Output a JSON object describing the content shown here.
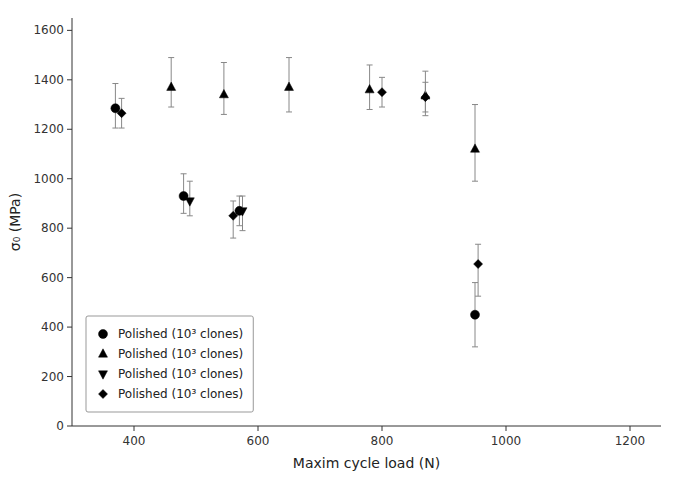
{
  "chart_data": {
    "type": "scatter",
    "xlabel": "Maxim cycle load (N)",
    "ylabel": "σ₀ (MPa)",
    "xlim": [
      300,
      1250
    ],
    "ylim": [
      0,
      1650
    ],
    "xticks": [
      400,
      600,
      800,
      1000,
      1200
    ],
    "yticks": [
      0,
      200,
      400,
      600,
      800,
      1000,
      1200,
      1400,
      1600
    ],
    "grid": false,
    "legend": "lower left",
    "series": [
      {
        "name": "Polished (10³ clones)",
        "marker": "circle",
        "color": "#000000",
        "x": [
          370,
          480,
          570,
          950
        ],
        "values": [
          1285,
          930,
          870,
          450
        ],
        "yerr_lo": [
          80,
          70,
          60,
          130
        ],
        "yerr_hi": [
          100,
          90,
          60,
          130
        ]
      },
      {
        "name": "Polished (10³ clones)",
        "marker": "triangle-up",
        "color": "#000000",
        "x": [
          460,
          545,
          650,
          780,
          870,
          950
        ],
        "values": [
          1370,
          1340,
          1370,
          1360,
          1335,
          1120
        ],
        "yerr_lo": [
          80,
          80,
          100,
          80,
          80,
          130
        ],
        "yerr_hi": [
          120,
          130,
          120,
          100,
          100,
          180
        ]
      },
      {
        "name": "Polished (10³ clones)",
        "marker": "triangle-down",
        "color": "#000000",
        "x": [
          490,
          575
        ],
        "values": [
          910,
          870
        ],
        "yerr_lo": [
          60,
          80
        ],
        "yerr_hi": [
          80,
          60
        ]
      },
      {
        "name": "Polished (10³ clones)",
        "marker": "diamond",
        "color": "#000000",
        "x": [
          380,
          560,
          800,
          870,
          955
        ],
        "values": [
          1265,
          850,
          1350,
          1330,
          655
        ],
        "yerr_lo": [
          60,
          90,
          60,
          60,
          130
        ],
        "yerr_hi": [
          60,
          60,
          60,
          60,
          80
        ]
      }
    ]
  }
}
